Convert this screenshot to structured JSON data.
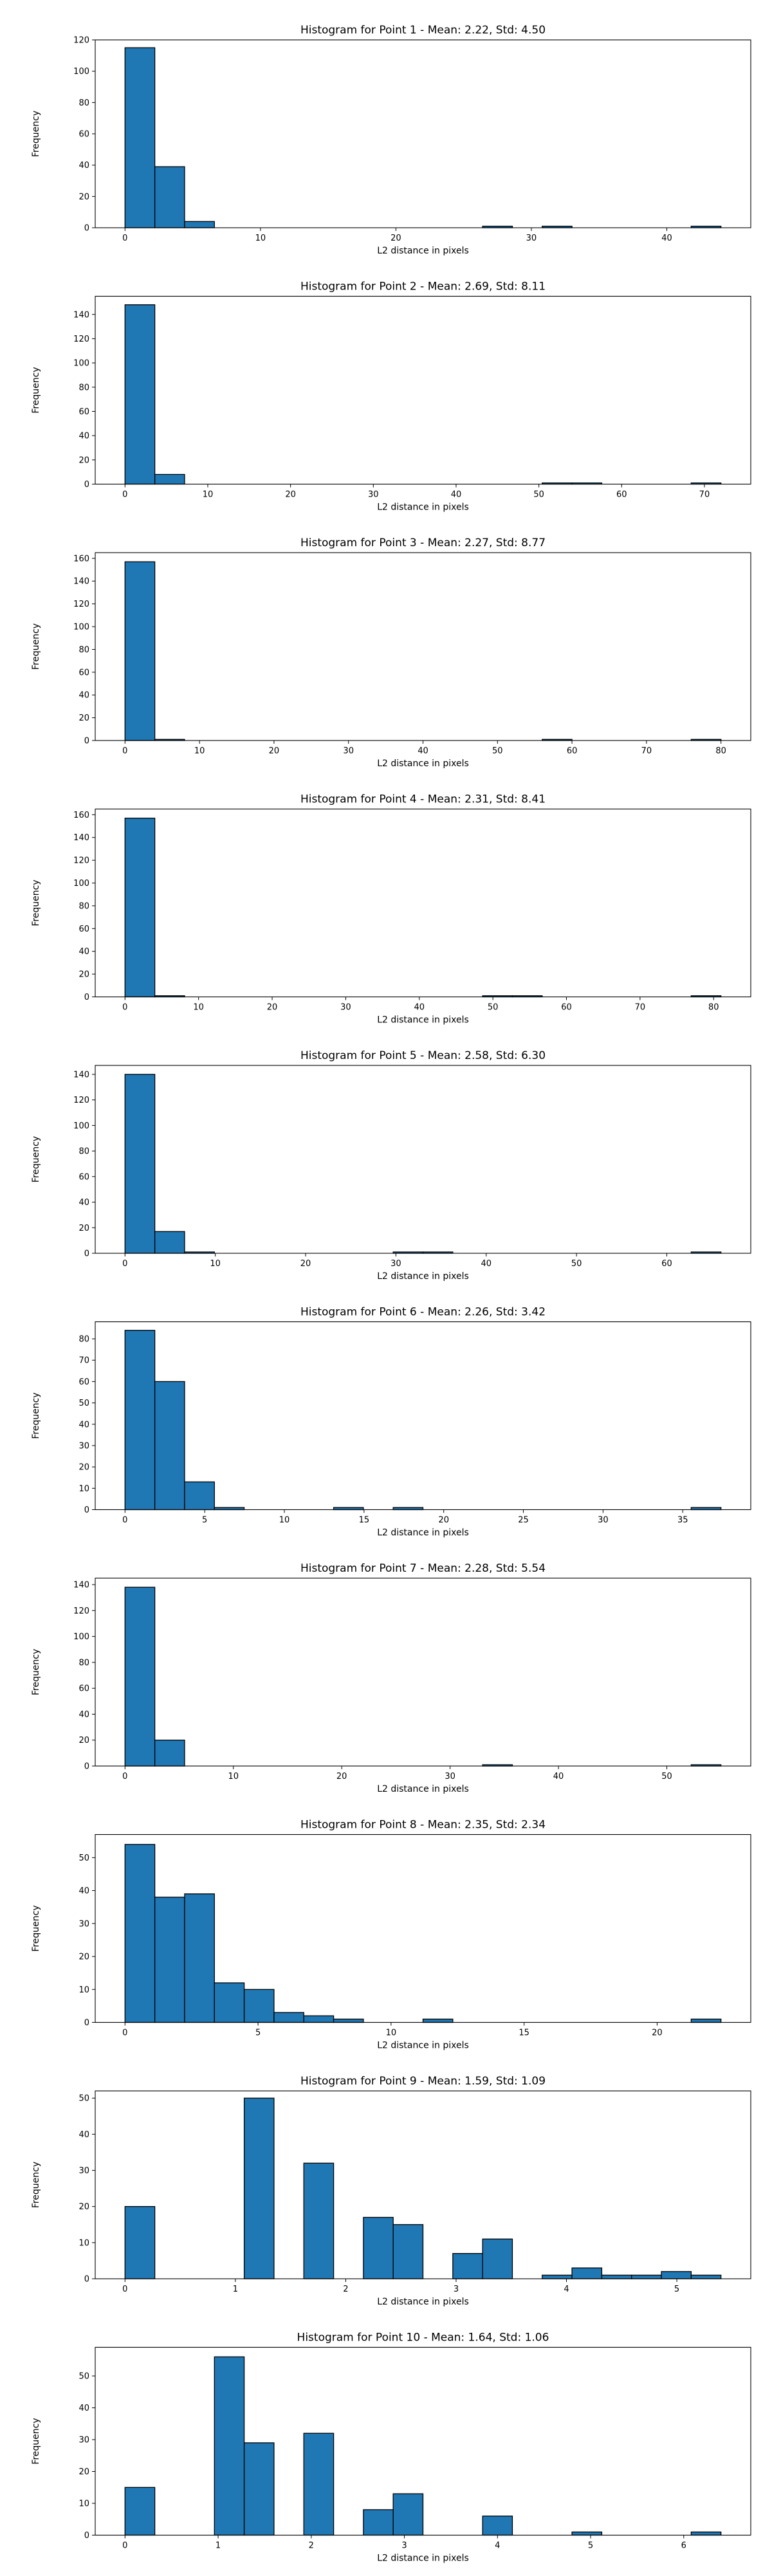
{
  "chart_data": [
    {
      "type": "bar",
      "title": "Histogram for Point 1 - Mean: 2.22, Std: 4.50",
      "xlabel": "L2 distance in pixels",
      "ylabel": "Frequency",
      "bins": {
        "start": 0.0,
        "width": 2.2,
        "count": 20
      },
      "values": [
        115,
        39,
        4,
        0,
        0,
        0,
        0,
        0,
        0,
        0,
        0,
        0,
        1,
        0,
        1,
        0,
        0,
        0,
        0,
        1
      ],
      "xlim": [
        -2.2,
        46.2
      ],
      "ylim": [
        0,
        120
      ],
      "xticks": [
        0,
        10,
        20,
        30,
        40
      ],
      "yticks": [
        0,
        20,
        40,
        60,
        80,
        100,
        120
      ],
      "grid": false
    },
    {
      "type": "bar",
      "title": "Histogram for Point 2 - Mean: 2.69, Std: 8.11",
      "xlabel": "L2 distance in pixels",
      "ylabel": "Frequency",
      "bins": {
        "start": 0.0,
        "width": 3.6,
        "count": 20
      },
      "values": [
        148,
        8,
        0,
        0,
        0,
        0,
        0,
        0,
        0,
        0,
        0,
        0,
        0,
        0,
        1,
        1,
        0,
        0,
        0,
        1
      ],
      "xlim": [
        -3.6,
        75.6
      ],
      "ylim": [
        0,
        155
      ],
      "xticks": [
        0,
        10,
        20,
        30,
        40,
        50,
        60,
        70
      ],
      "yticks": [
        0,
        20,
        40,
        60,
        80,
        100,
        120,
        140
      ],
      "grid": false
    },
    {
      "type": "bar",
      "title": "Histogram for Point 3 - Mean: 2.27, Std: 8.77",
      "xlabel": "L2 distance in pixels",
      "ylabel": "Frequency",
      "bins": {
        "start": 0.0,
        "width": 4.0,
        "count": 20
      },
      "values": [
        157,
        1,
        0,
        0,
        0,
        0,
        0,
        0,
        0,
        0,
        0,
        0,
        0,
        0,
        1,
        0,
        0,
        0,
        0,
        1
      ],
      "xlim": [
        -4.0,
        84.0
      ],
      "ylim": [
        0,
        165
      ],
      "xticks": [
        0,
        10,
        20,
        30,
        40,
        50,
        60,
        70,
        80
      ],
      "yticks": [
        0,
        20,
        40,
        60,
        80,
        100,
        120,
        140,
        160
      ],
      "grid": false
    },
    {
      "type": "bar",
      "title": "Histogram for Point 4 - Mean: 2.31, Std: 8.41",
      "xlabel": "L2 distance in pixels",
      "ylabel": "Frequency",
      "bins": {
        "start": 0.0,
        "width": 4.05,
        "count": 20
      },
      "values": [
        157,
        1,
        0,
        0,
        0,
        0,
        0,
        0,
        0,
        0,
        0,
        0,
        1,
        1,
        0,
        0,
        0,
        0,
        0,
        1
      ],
      "xlim": [
        -4.05,
        85.05
      ],
      "ylim": [
        0,
        165
      ],
      "xticks": [
        0,
        10,
        20,
        30,
        40,
        50,
        60,
        70,
        80
      ],
      "yticks": [
        0,
        20,
        40,
        60,
        80,
        100,
        120,
        140,
        160
      ],
      "grid": false
    },
    {
      "type": "bar",
      "title": "Histogram for Point 5 - Mean: 2.58, Std: 6.30",
      "xlabel": "L2 distance in pixels",
      "ylabel": "Frequency",
      "bins": {
        "start": 0.0,
        "width": 3.3,
        "count": 20
      },
      "values": [
        140,
        17,
        1,
        0,
        0,
        0,
        0,
        0,
        0,
        1,
        1,
        0,
        0,
        0,
        0,
        0,
        0,
        0,
        0,
        1
      ],
      "xlim": [
        -3.3,
        69.3
      ],
      "ylim": [
        0,
        147
      ],
      "xticks": [
        0,
        10,
        20,
        30,
        40,
        50,
        60
      ],
      "yticks": [
        0,
        20,
        40,
        60,
        80,
        100,
        120,
        140
      ],
      "grid": false
    },
    {
      "type": "bar",
      "title": "Histogram for Point 6 - Mean: 2.26, Std: 3.42",
      "xlabel": "L2 distance in pixels",
      "ylabel": "Frequency",
      "bins": {
        "start": 0.0,
        "width": 1.87,
        "count": 20
      },
      "values": [
        84,
        60,
        13,
        1,
        0,
        0,
        0,
        1,
        0,
        1,
        0,
        0,
        0,
        0,
        0,
        0,
        0,
        0,
        0,
        1
      ],
      "xlim": [
        -1.87,
        39.27
      ],
      "ylim": [
        0,
        88
      ],
      "xticks": [
        0,
        5,
        10,
        15,
        20,
        25,
        30,
        35
      ],
      "yticks": [
        0,
        10,
        20,
        30,
        40,
        50,
        60,
        70,
        80
      ],
      "grid": false
    },
    {
      "type": "bar",
      "title": "Histogram for Point 7 - Mean: 2.28, Std: 5.54",
      "xlabel": "L2 distance in pixels",
      "ylabel": "Frequency",
      "bins": {
        "start": 0.0,
        "width": 2.75,
        "count": 20
      },
      "values": [
        138,
        20,
        0,
        0,
        0,
        0,
        0,
        0,
        0,
        0,
        0,
        0,
        1,
        0,
        0,
        0,
        0,
        0,
        0,
        1
      ],
      "xlim": [
        -2.75,
        57.75
      ],
      "ylim": [
        0,
        145
      ],
      "xticks": [
        0,
        10,
        20,
        30,
        40,
        50
      ],
      "yticks": [
        0,
        20,
        40,
        60,
        80,
        100,
        120,
        140
      ],
      "grid": false
    },
    {
      "type": "bar",
      "title": "Histogram for Point 8 - Mean: 2.35, Std: 2.34",
      "xlabel": "L2 distance in pixels",
      "ylabel": "Frequency",
      "bins": {
        "start": 0.0,
        "width": 1.12,
        "count": 20
      },
      "values": [
        54,
        38,
        39,
        12,
        10,
        3,
        2,
        1,
        0,
        0,
        1,
        0,
        0,
        0,
        0,
        0,
        0,
        0,
        0,
        1
      ],
      "xlim": [
        -1.12,
        23.52
      ],
      "ylim": [
        0,
        57
      ],
      "xticks": [
        0,
        5,
        10,
        15,
        20
      ],
      "yticks": [
        0,
        10,
        20,
        30,
        40,
        50
      ],
      "grid": false
    },
    {
      "type": "bar",
      "title": "Histogram for Point 9 - Mean: 1.59, Std: 1.09",
      "xlabel": "L2 distance in pixels",
      "ylabel": "Frequency",
      "bins": {
        "start": 0.0,
        "width": 0.27,
        "count": 20
      },
      "values": [
        20,
        0,
        0,
        0,
        50,
        0,
        32,
        0,
        17,
        15,
        0,
        7,
        11,
        0,
        1,
        3,
        1,
        1,
        2,
        1
      ],
      "xlim": [
        -0.27,
        5.67
      ],
      "ylim": [
        0,
        52
      ],
      "xticks": [
        0,
        1,
        2,
        3,
        4,
        5
      ],
      "yticks": [
        0,
        10,
        20,
        30,
        40,
        50
      ],
      "grid": false
    },
    {
      "type": "bar",
      "title": "Histogram for Point 10 - Mean: 1.64, Std: 1.06",
      "xlabel": "L2 distance in pixels",
      "ylabel": "Frequency",
      "bins": {
        "start": 0.0,
        "width": 0.32,
        "count": 20
      },
      "values": [
        15,
        0,
        0,
        56,
        29,
        0,
        32,
        0,
        8,
        13,
        0,
        0,
        6,
        0,
        0,
        1,
        0,
        0,
        0,
        1
      ],
      "xlim": [
        -0.32,
        6.72
      ],
      "ylim": [
        0,
        59
      ],
      "xticks": [
        0,
        1,
        2,
        3,
        4,
        5,
        6
      ],
      "yticks": [
        0,
        10,
        20,
        30,
        40,
        50
      ],
      "grid": false
    }
  ],
  "colors": {
    "bar_fill": "#1f77b4",
    "bar_edge": "#000000",
    "axes": "#000000"
  }
}
